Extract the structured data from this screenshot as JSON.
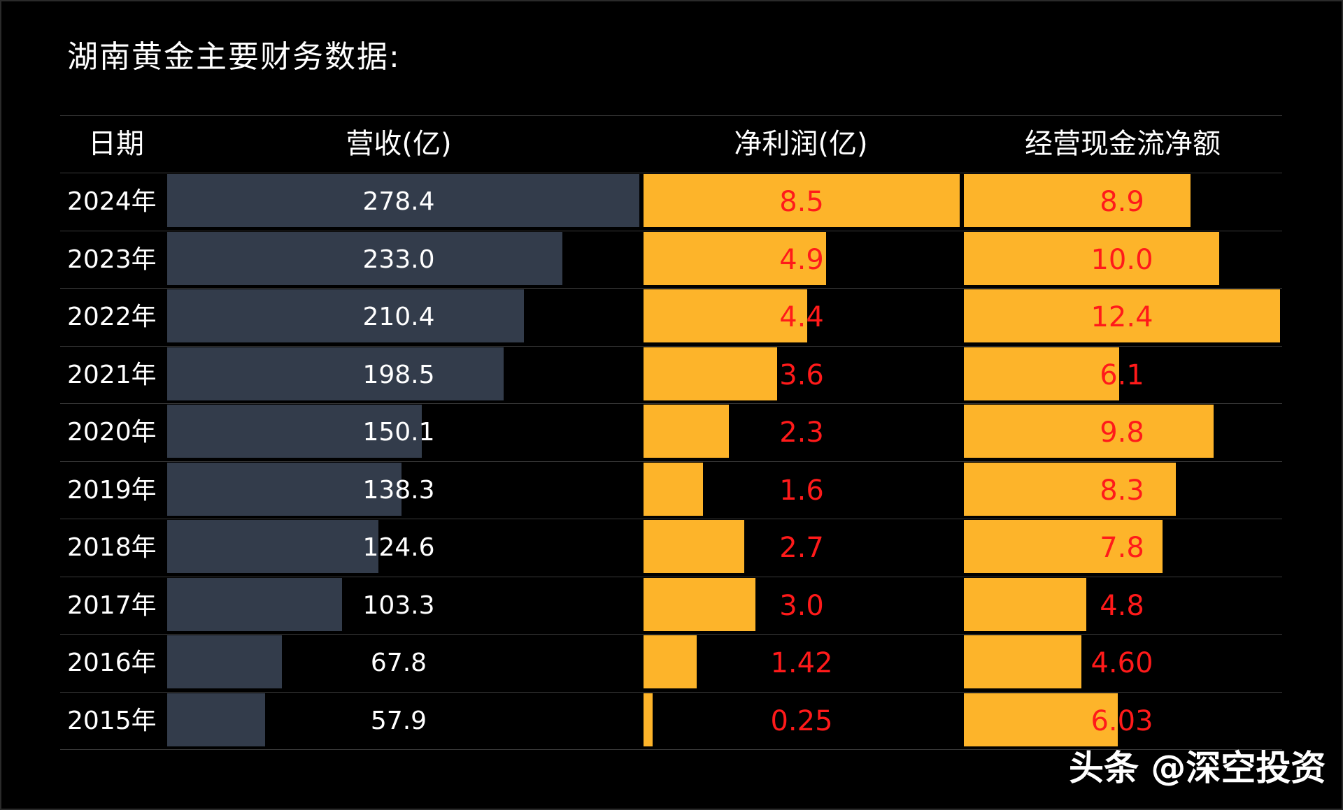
{
  "title": "湖南黄金主要财务数据:",
  "headers": {
    "date": "日期",
    "revenue": "营收(亿)",
    "net_profit": "净利润(亿)",
    "cash_flow": "经营现金流净额"
  },
  "watermark": "头条 @深空投资",
  "colors": {
    "background": "#000000",
    "revenue_bar": "#333c4b",
    "profit_bar": "#fdb42a",
    "profit_text": "#ff1a1a",
    "revenue_text": "#ffffff"
  },
  "chart_data": {
    "type": "table",
    "title": "湖南黄金主要财务数据:",
    "columns": [
      "日期",
      "营收(亿)",
      "净利润(亿)",
      "经营现金流净额"
    ],
    "rows": [
      {
        "year": "2024年",
        "revenue": "278.4",
        "net_profit": "8.5",
        "cash_flow": "8.9"
      },
      {
        "year": "2023年",
        "revenue": "233.0",
        "net_profit": "4.9",
        "cash_flow": "10.0"
      },
      {
        "year": "2022年",
        "revenue": "210.4",
        "net_profit": "4.4",
        "cash_flow": "12.4"
      },
      {
        "year": "2021年",
        "revenue": "198.5",
        "net_profit": "3.6",
        "cash_flow": "6.1"
      },
      {
        "year": "2020年",
        "revenue": "150.1",
        "net_profit": "2.3",
        "cash_flow": "9.8"
      },
      {
        "year": "2019年",
        "revenue": "138.3",
        "net_profit": "1.6",
        "cash_flow": "8.3"
      },
      {
        "year": "2018年",
        "revenue": "124.6",
        "net_profit": "2.7",
        "cash_flow": "7.8"
      },
      {
        "year": "2017年",
        "revenue": "103.3",
        "net_profit": "3.0",
        "cash_flow": "4.8"
      },
      {
        "year": "2016年",
        "revenue": "67.8",
        "net_profit": "1.42",
        "cash_flow": "4.60"
      },
      {
        "year": "2015年",
        "revenue": "57.9",
        "net_profit": "0.25",
        "cash_flow": "6.03"
      }
    ]
  }
}
